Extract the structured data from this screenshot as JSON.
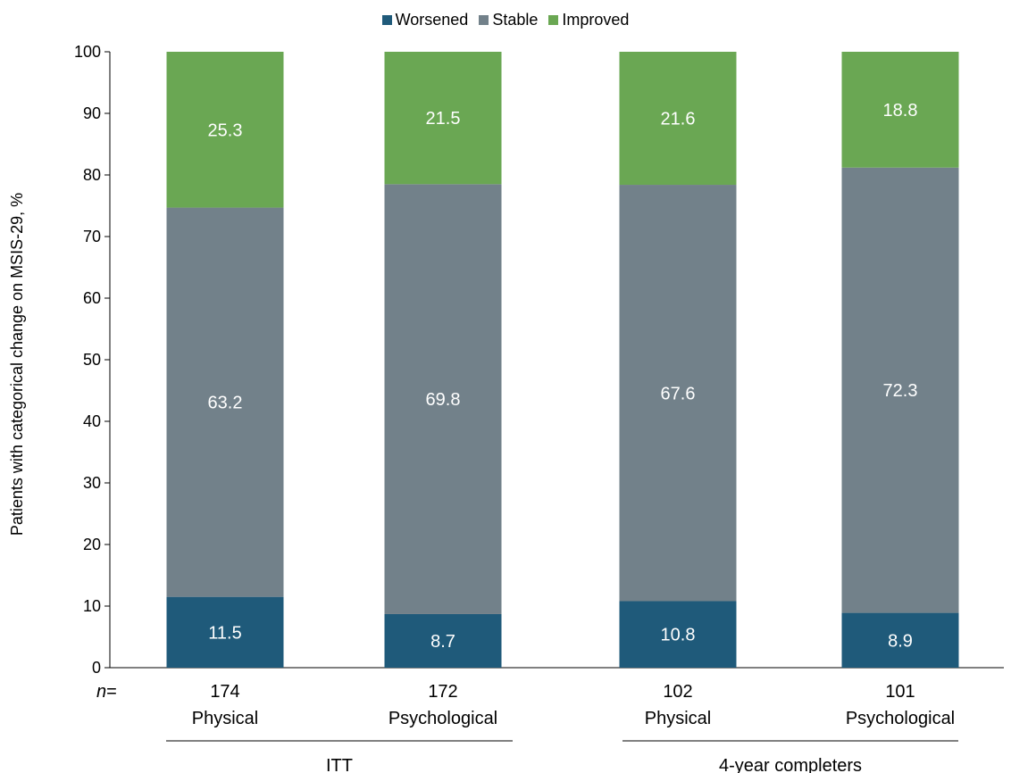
{
  "chart_data": {
    "type": "bar",
    "stacked": true,
    "ylabel": "Patients with categorical change on MSIS-29, %",
    "ylim": [
      0,
      100
    ],
    "yticks": [
      0,
      10,
      20,
      30,
      40,
      50,
      60,
      70,
      80,
      90,
      100
    ],
    "n_prefix": "n",
    "n_suffix": "=",
    "categories": [
      {
        "n": "174",
        "label": "Physical"
      },
      {
        "n": "172",
        "label": "Psychological"
      },
      {
        "n": "102",
        "label": "Physical"
      },
      {
        "n": "101",
        "label": "Psychological"
      }
    ],
    "groups": [
      {
        "label": "ITT",
        "categories": [
          0,
          1
        ]
      },
      {
        "label": "4-year completers",
        "categories": [
          2,
          3
        ]
      }
    ],
    "series": [
      {
        "name": "Worsened",
        "color": "#1f5a7a",
        "values": [
          11.5,
          8.7,
          10.8,
          8.9
        ]
      },
      {
        "name": "Stable",
        "color": "#72818a",
        "values": [
          63.2,
          69.8,
          67.6,
          72.3
        ]
      },
      {
        "name": "Improved",
        "color": "#6aa753",
        "values": [
          25.3,
          21.5,
          21.6,
          18.8
        ]
      }
    ],
    "legend_position": "top-center",
    "grid": false
  }
}
